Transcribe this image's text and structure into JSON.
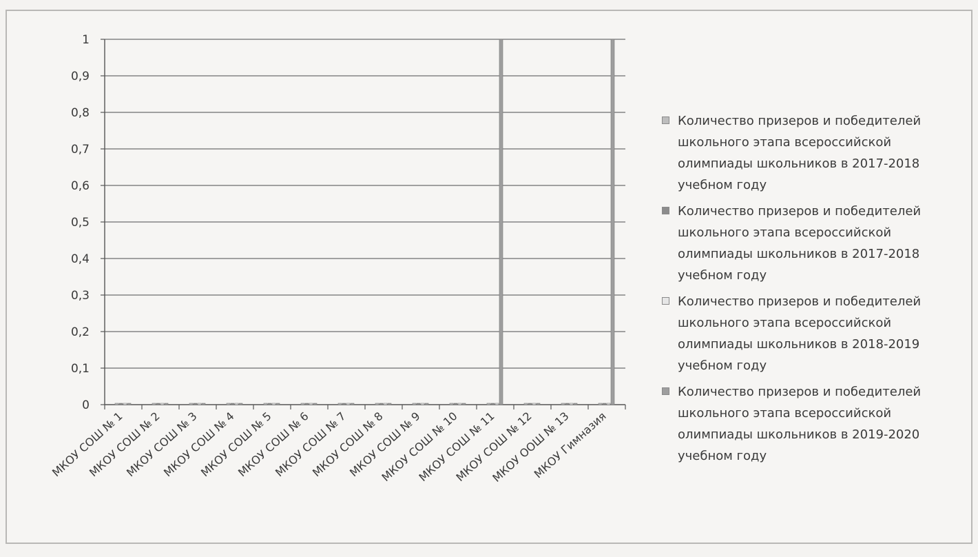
{
  "chart_data": {
    "type": "bar",
    "categories": [
      "МКОУ СОШ № 1",
      "МКОУ СОШ № 2",
      "МКОУ СОШ № 3",
      "МКОУ СОШ № 4",
      "МКОУ СОШ № 5",
      "МКОУ СОШ № 6",
      "МКОУ СОШ № 7",
      "МКОУ СОШ № 8",
      "МКОУ СОШ № 9",
      "МКОУ СОШ № 10",
      "МКОУ СОШ № 11",
      "МКОУ СОШ № 12",
      "МКОУ ООШ № 13",
      "МКОУ Гимназия"
    ],
    "series": [
      {
        "name": "Количество призеров и победителей школьного этапа всероссийской олимпиады школьников в 2017-2018 учебном году",
        "values": [
          0,
          0,
          0,
          0,
          0,
          0,
          0,
          0,
          0,
          0,
          0,
          0,
          0,
          0
        ],
        "color": "#bdbdbd"
      },
      {
        "name": "Количество призеров и победителей школьного этапа всероссийской олимпиады школьников в 2017-2018 учебном году",
        "values": [
          0,
          0,
          0,
          0,
          0,
          0,
          0,
          0,
          0,
          0,
          0,
          0,
          0,
          0
        ],
        "color": "#8c8c8c"
      },
      {
        "name": "Количество призеров и победителей школьного этапа всероссийской олимпиады школьников в 2018-2019 учебном году",
        "values": [
          0,
          0,
          0,
          0,
          0,
          0,
          0,
          0,
          0,
          0,
          0,
          0,
          0,
          0
        ],
        "color": "#e6e6e6"
      },
      {
        "name": "Количество призеров и победителей школьного этапа всероссийской олимпиады школьников в 2019-2020 учебном году",
        "values": [
          0,
          0,
          0,
          0,
          0,
          0,
          0,
          0,
          0,
          0,
          1,
          0,
          0,
          1
        ],
        "color": "#9e9e9e"
      }
    ],
    "yticks": [
      "0",
      "0,1",
      "0,2",
      "0,3",
      "0,4",
      "0,5",
      "0,6",
      "0,7",
      "0,8",
      "0,9",
      "1"
    ],
    "ylim": [
      0,
      1
    ],
    "grid": true,
    "legend_position": "right"
  }
}
